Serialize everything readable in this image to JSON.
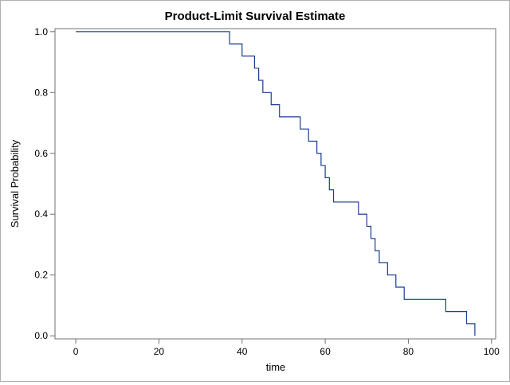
{
  "chart_data": {
    "type": "line",
    "step": true,
    "title": "Product-Limit Survival Estimate",
    "xlabel": "time",
    "ylabel": "Survival Probability",
    "xlim": [
      -5,
      101
    ],
    "ylim": [
      -0.01,
      1.01
    ],
    "xticks": [
      0,
      20,
      40,
      60,
      80,
      100
    ],
    "yticks": [
      "0.0",
      "0.2",
      "0.4",
      "0.6",
      "0.8",
      "1.0"
    ],
    "grid": false,
    "colors": {
      "line": "#1c3f8f",
      "axis": "#707070",
      "frame": "#b0b0b0"
    },
    "series": [
      {
        "x": [
          0,
          37,
          40,
          43,
          44,
          45,
          47,
          49,
          54,
          56,
          58,
          59,
          60,
          61,
          62,
          68,
          70,
          71,
          72,
          73,
          75,
          77,
          79,
          89,
          94,
          96
        ],
        "y": [
          1.0,
          0.96,
          0.92,
          0.88,
          0.84,
          0.8,
          0.76,
          0.72,
          0.68,
          0.64,
          0.6,
          0.56,
          0.52,
          0.48,
          0.44,
          0.4,
          0.36,
          0.32,
          0.28,
          0.24,
          0.2,
          0.16,
          0.12,
          0.08,
          0.04,
          0.0
        ]
      }
    ]
  }
}
